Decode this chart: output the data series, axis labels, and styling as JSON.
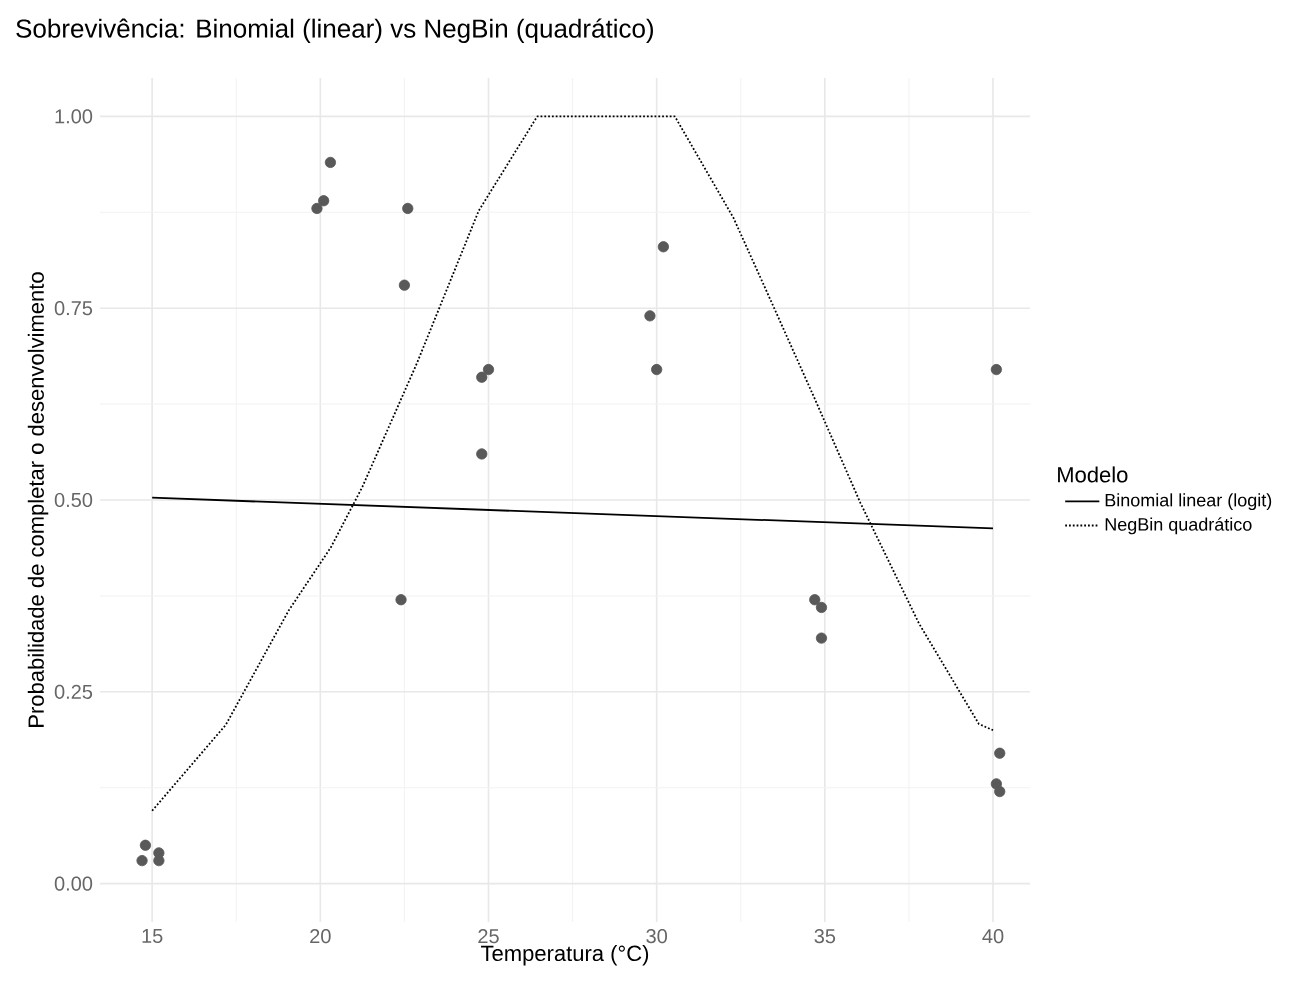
{
  "chart_data": {
    "type": "scatter",
    "title": "Sobrevivência: Binomial (linear) vs NegBin (quadrático)",
    "xlabel": "Temperatura (°C)",
    "ylabel": "Probabilidade de completar o desenvolvimento",
    "legend_title": "Modelo",
    "xlim": [
      13.45,
      41.1
    ],
    "ylim": [
      -0.05,
      1.05
    ],
    "xticks": [
      15,
      20,
      25,
      30,
      35,
      40
    ],
    "yticks": [
      {
        "value": 0,
        "label": "0.00"
      },
      {
        "value": 0.25,
        "label": "0.25"
      },
      {
        "value": 0.5,
        "label": "0.50"
      },
      {
        "value": 0.75,
        "label": "0.75"
      },
      {
        "value": 1,
        "label": "1.00"
      }
    ],
    "grid": true,
    "legend": "right",
    "series": [
      {
        "color": "#595959",
        "marker": "circle",
        "x": [
          14.8,
          14.7,
          15.2,
          15.2,
          19.9,
          20.1,
          20.3,
          22.4,
          22.5,
          22.6,
          24.8,
          24.8,
          25.0,
          29.8,
          30.0,
          30.2,
          34.7,
          34.9,
          34.9,
          40.1,
          40.2,
          40.1,
          40.2
        ],
        "values": [
          0.05,
          0.03,
          0.04,
          0.03,
          0.88,
          0.89,
          0.94,
          0.37,
          0.78,
          0.88,
          0.56,
          0.66,
          0.67,
          0.74,
          0.67,
          0.83,
          0.37,
          0.36,
          0.32,
          0.67,
          0.17,
          0.13,
          0.12
        ]
      },
      {
        "type": "line",
        "name": "Binomial linear (logit)",
        "color": "#000000",
        "line_style": "solid",
        "marker": "none",
        "x": [
          15,
          40
        ],
        "values": [
          0.503,
          0.463
        ]
      },
      {
        "type": "line",
        "name": "NegBin quadrático",
        "color": "#000000",
        "line_style": "dotted",
        "marker": "none",
        "x": [
          15,
          17.19,
          19.06,
          20.31,
          21.25,
          22.87,
          24.71,
          26.45,
          30.54,
          32.28,
          33.3,
          34.73,
          36.06,
          37.8,
          39.58,
          40
        ],
        "values": [
          0.095,
          0.207,
          0.356,
          0.438,
          0.517,
          0.678,
          0.877,
          1.0,
          1.0,
          0.868,
          0.769,
          0.629,
          0.496,
          0.339,
          0.208,
          0.2
        ]
      }
    ]
  }
}
